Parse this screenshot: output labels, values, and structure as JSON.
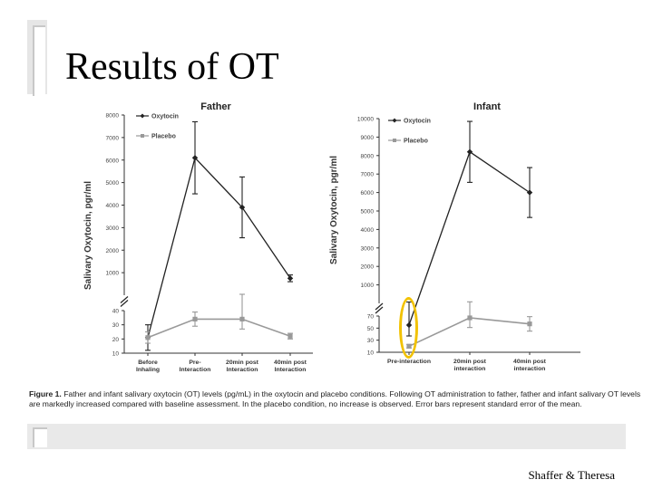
{
  "slide": {
    "title": "Results of OT",
    "credit": "Shaffer & Theresa"
  },
  "caption": {
    "label": "Figure 1.",
    "text": " Father and infant salivary oxytocin (OT) levels (pg/mL) in the oxytocin and placebo conditions. Following OT administration to father, father and infant salivary OT levels are markedly increased compared with baseline assessment. In the placebo condition, no increase is observed. Error bars represent standard error of the mean."
  },
  "colors": {
    "oxytocin": "#222222",
    "placebo": "#999999",
    "highlight": "#f2c200"
  },
  "chart_data": [
    {
      "type": "line",
      "title": "Father",
      "ylabel": "Salivary Oxytocin, pgr/ml",
      "categories": [
        "Before Inhaling",
        "Pre-Interaction",
        "20min post Interaction",
        "40min post Interaction"
      ],
      "category_lines": [
        [
          "Before",
          "Inhaling"
        ],
        [
          "Pre-",
          "Interaction"
        ],
        [
          "20min post",
          "Interaction"
        ],
        [
          "40min post",
          "Interaction"
        ]
      ],
      "upper_ticks": [
        "8000",
        "7000",
        "6000",
        "5000",
        "4000",
        "3000",
        "2000",
        "1000"
      ],
      "upper_range": [
        0,
        8000
      ],
      "lower_ticks": [
        "40",
        "30",
        "20",
        "10"
      ],
      "lower_range": [
        10,
        40
      ],
      "series": [
        {
          "name": "Oxytocin",
          "values": [
            21,
            6100,
            3900,
            750
          ],
          "errors": [
            9,
            1600,
            1350,
            150
          ]
        },
        {
          "name": "Placebo",
          "values": [
            21,
            34,
            34,
            22
          ],
          "errors": [
            4,
            5,
            7,
            2
          ]
        }
      ]
    },
    {
      "type": "line",
      "title": "Infant",
      "ylabel": "Salivary Oxytocin, pgr/ml",
      "categories": [
        "Pre-interaction",
        "20min post interaction",
        "40min post interaction"
      ],
      "category_lines": [
        [
          "Pre-interaction"
        ],
        [
          "20min post",
          "interaction"
        ],
        [
          "40min post",
          "interaction"
        ]
      ],
      "upper_ticks": [
        "10000",
        "9000",
        "8000",
        "7000",
        "6000",
        "5000",
        "4000",
        "3000",
        "2000",
        "1000"
      ],
      "upper_range": [
        0,
        10000
      ],
      "lower_ticks": [
        "70",
        "50",
        "30",
        "10"
      ],
      "lower_range": [
        10,
        70
      ],
      "series": [
        {
          "name": "Oxytocin",
          "values": [
            55,
            8200,
            6000
          ],
          "errors": [
            18,
            1650,
            1350
          ]
        },
        {
          "name": "Placebo",
          "values": [
            20,
            67,
            57
          ],
          "errors": [
            3,
            16,
            12
          ]
        }
      ]
    }
  ]
}
